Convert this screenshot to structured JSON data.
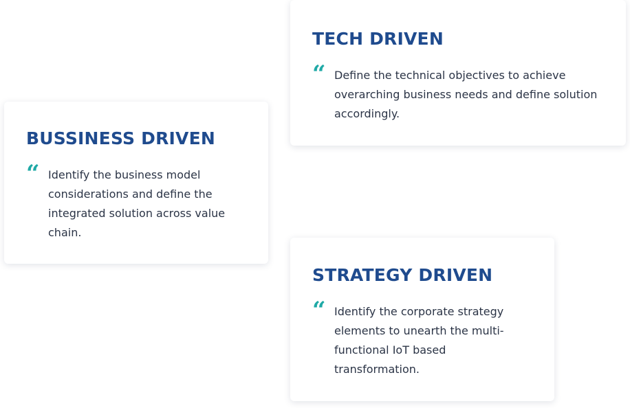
{
  "cards": [
    {
      "title": "TECH DRIVEN",
      "quote_icon": "“",
      "text": "Define the technical objectives to achieve overarching business needs and define solution accordingly."
    },
    {
      "title": "BUSSINESS DRIVEN",
      "quote_icon": "“",
      "text": "Identify the business model considerations and define the integrated solution across value chain."
    },
    {
      "title": "STRATEGY DRIVEN",
      "quote_icon": "“",
      "text": "Identify the corporate strategy elements to unearth the multi-functional IoT based transformation."
    }
  ],
  "colors": {
    "title": "#1f4b8e",
    "quote_accent": "#1fa9a6",
    "body_text": "#2b3446",
    "card_background": "#ffffff"
  },
  "icons": {
    "quote": "quote-icon"
  }
}
